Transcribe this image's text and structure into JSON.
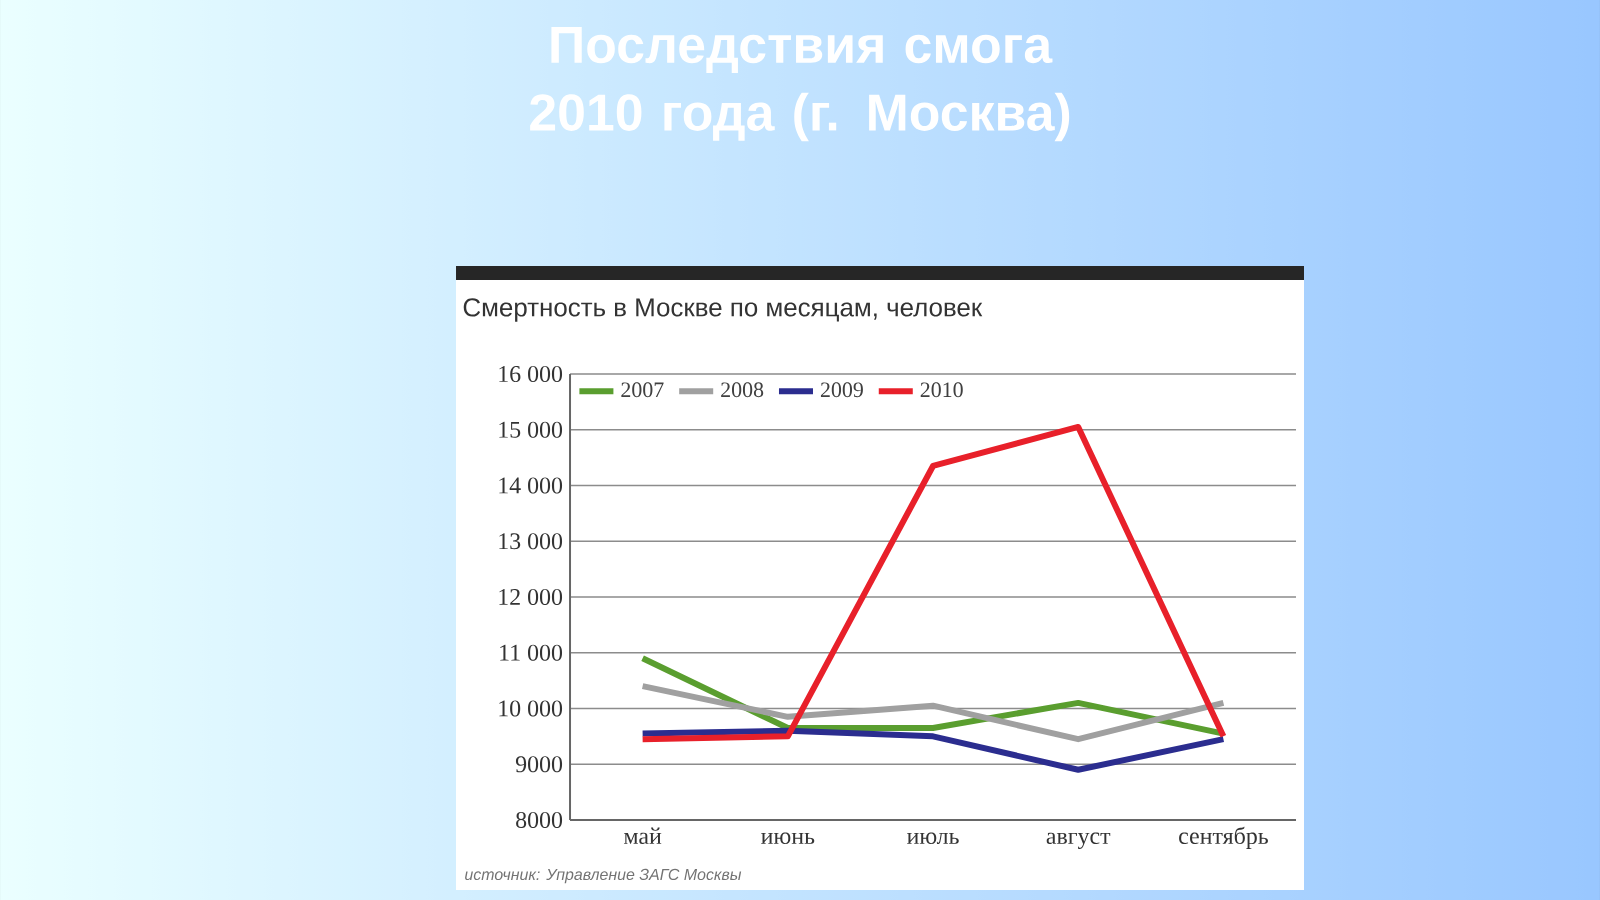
{
  "chart_data": {
    "type": "line",
    "title": "Последствия смога  2010 года (г. Москва)",
    "subtitle": "Смертность в Москве по месяцам, человек",
    "categories": [
      "май",
      "июнь",
      "июль",
      "август",
      "сентябрь"
    ],
    "series": [
      {
        "name": "2007",
        "color": "#5a9e2f",
        "values": [
          10900,
          9650,
          9650,
          10100,
          9550
        ]
      },
      {
        "name": "2008",
        "color": "#a0a0a0",
        "values": [
          10400,
          9850,
          10050,
          9450,
          10100
        ]
      },
      {
        "name": "2009",
        "color": "#2b2d8f",
        "values": [
          9550,
          9600,
          9500,
          8900,
          9450
        ]
      },
      {
        "name": "2010",
        "color": "#e8202a",
        "values": [
          9450,
          9500,
          14350,
          15050,
          9500
        ]
      }
    ],
    "ylim": [
      8000,
      16000
    ],
    "yticks": [
      8000,
      9000,
      {
        "value": 10000,
        "label": "10 000"
      },
      {
        "value": 11000,
        "label": "11 000"
      },
      {
        "value": 12000,
        "label": "12 000"
      },
      {
        "value": 13000,
        "label": "13 000"
      },
      {
        "value": 14000,
        "label": "14 000"
      },
      {
        "value": 15000,
        "label": "15 000"
      },
      {
        "value": 16000,
        "label": "16 000"
      }
    ],
    "grid": "y",
    "legend": "top left",
    "marker": "none",
    "line_style": "solid",
    "annotations": [
      "источник: Управление ЗАГС Москвы"
    ]
  }
}
